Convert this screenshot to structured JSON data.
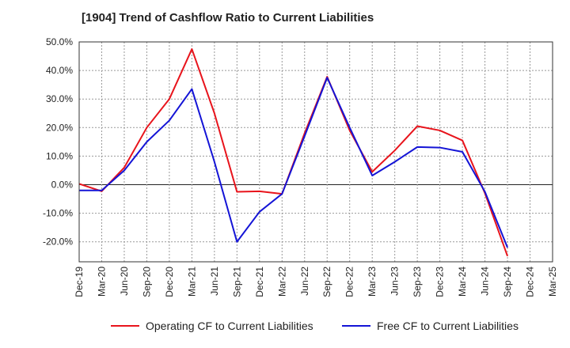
{
  "chart_data": {
    "type": "line",
    "title": "[1904]  Trend of Cashflow Ratio to Current Liabilities",
    "xlabel": "",
    "ylabel": "",
    "ylim": [
      -27,
      50
    ],
    "y_ticks": [
      50,
      40,
      30,
      20,
      10,
      0,
      -10,
      -20
    ],
    "y_tick_labels": [
      "50.0%",
      "40.0%",
      "30.0%",
      "20.0%",
      "10.0%",
      "0.0%",
      "-10.0%",
      "-20.0%"
    ],
    "categories": [
      "Dec-19",
      "Mar-20",
      "Jun-20",
      "Sep-20",
      "Dec-20",
      "Mar-21",
      "Jun-21",
      "Sep-21",
      "Dec-21",
      "Mar-22",
      "Jun-22",
      "Sep-22",
      "Dec-22",
      "Mar-23",
      "Jun-23",
      "Sep-23",
      "Dec-23",
      "Mar-24",
      "Jun-24",
      "Sep-24",
      "Dec-24",
      "Mar-25"
    ],
    "grid": true,
    "legend_position": "bottom",
    "series": [
      {
        "name": "Operating CF to Current Liabilities",
        "color": "#e8141c",
        "values": [
          0.3,
          -2.3,
          6.0,
          20.0,
          30.0,
          47.5,
          25.0,
          -2.5,
          -2.3,
          -3.2,
          18.0,
          37.8,
          19.0,
          4.5,
          12.0,
          20.5,
          19.0,
          15.5,
          -3.0,
          -25.0,
          null,
          null
        ]
      },
      {
        "name": "Free CF to Current Liabilities",
        "color": "#1414d6",
        "values": [
          -2.0,
          -2.0,
          5.0,
          15.0,
          22.5,
          33.5,
          8.0,
          -20.0,
          -9.5,
          -3.2,
          17.0,
          37.5,
          20.0,
          3.2,
          8.0,
          13.2,
          13.0,
          11.5,
          -2.5,
          -22.0,
          null,
          null
        ]
      }
    ]
  }
}
